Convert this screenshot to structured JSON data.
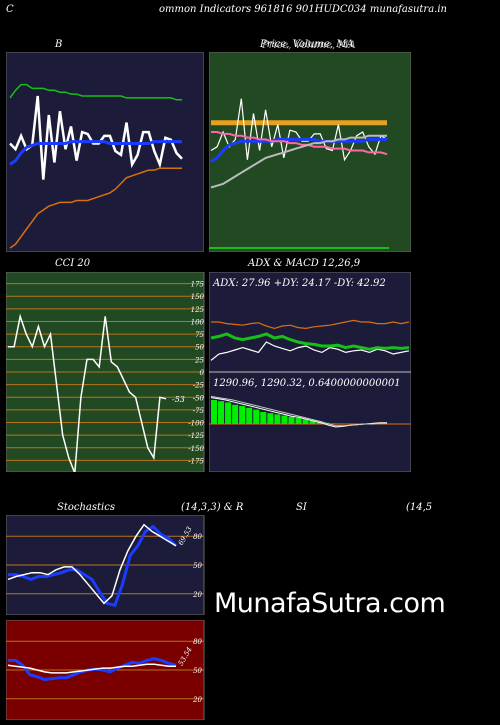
{
  "header": {
    "left": "C",
    "title": "ommon  Indicators 961816  901HUDC034  munafasutra.in"
  },
  "watermark": "MunafaSutra.com",
  "colors": {
    "navy": "#1c1c3a",
    "green_panel": "#224a22",
    "maroon": "#7a0000",
    "grid_orange": "#b8741a",
    "blue_line": "#1a3cff",
    "green_line": "#16c016",
    "orange_line": "#d87010",
    "macd_bar": "#00ee00"
  },
  "chart_data": [
    {
      "id": "bollinger",
      "type": "line",
      "title": "B",
      "series": [
        {
          "color": "#16c016",
          "values": [
            79,
            83,
            86,
            86,
            84,
            84,
            84,
            83,
            83,
            82,
            82,
            81,
            81,
            80,
            80,
            80,
            80,
            80,
            80,
            80,
            80,
            79,
            79,
            79,
            79,
            79,
            79,
            79,
            79,
            79,
            78,
            78
          ]
        },
        {
          "color": "#ffffff",
          "values": [
            55,
            52,
            59,
            52,
            54,
            80,
            36,
            70,
            45,
            72,
            52,
            64,
            46,
            61,
            60,
            55,
            55,
            59,
            59,
            51,
            49,
            66,
            44,
            49,
            61,
            61,
            51,
            44,
            58,
            57,
            50,
            47
          ]
        },
        {
          "color": "#1a3cff",
          "values": [
            44,
            46,
            50,
            53,
            54,
            55,
            55,
            55,
            55,
            55,
            55,
            56,
            56,
            56,
            56,
            56,
            56,
            56,
            55,
            55,
            55,
            55,
            55,
            55,
            55,
            55,
            56,
            56,
            56,
            56,
            56,
            56
          ]
        },
        {
          "color": "#d87010",
          "values": [
            0,
            2,
            6,
            10,
            14,
            18,
            20,
            22,
            23,
            24,
            24,
            24,
            25,
            25,
            25,
            26,
            27,
            28,
            29,
            31,
            34,
            37,
            38,
            39,
            40,
            41,
            41,
            42,
            42,
            42,
            42,
            42
          ]
        }
      ],
      "ylim": [
        0,
        100
      ]
    },
    {
      "id": "price_ma",
      "type": "line",
      "title": "Price,  Volume,  MA",
      "overlap_text": "Price, Volume, MA",
      "series": [
        {
          "color": "#e8a020",
          "values": [
            65,
            65,
            65,
            65,
            65,
            65,
            65,
            65,
            65,
            65,
            65,
            65,
            65,
            65,
            65,
            65,
            65,
            65,
            65,
            65,
            65,
            65,
            65,
            65,
            65,
            65,
            65,
            65,
            65,
            65
          ]
        },
        {
          "color": "#ffffff",
          "values": [
            50,
            52,
            60,
            52,
            56,
            78,
            45,
            70,
            50,
            72,
            52,
            64,
            46,
            61,
            60,
            55,
            55,
            59,
            59,
            51,
            50,
            64,
            45,
            50,
            58,
            60,
            52,
            48,
            58,
            56
          ]
        },
        {
          "color": "#1a3cff",
          "values": [
            44,
            46,
            50,
            53,
            54,
            55,
            55,
            55,
            55,
            55,
            55,
            56,
            56,
            56,
            56,
            56,
            56,
            56,
            55,
            55,
            55,
            55,
            55,
            55,
            55,
            55,
            56,
            56,
            56,
            56
          ]
        },
        {
          "color": "#ff66aa",
          "values": [
            60,
            60,
            59,
            59,
            58,
            58,
            57,
            57,
            56,
            56,
            55,
            55,
            55,
            54,
            54,
            53,
            53,
            52,
            52,
            52,
            51,
            51,
            51,
            50,
            50,
            50,
            49,
            49,
            49,
            48
          ]
        },
        {
          "color": "#bbbbbb",
          "values": [
            30,
            31,
            32,
            34,
            36,
            38,
            40,
            42,
            44,
            46,
            47,
            48,
            49,
            50,
            51,
            52,
            53,
            54,
            54,
            55,
            55,
            56,
            56,
            57,
            57,
            57,
            58,
            58,
            58,
            58
          ]
        }
      ],
      "ylim": [
        0,
        100
      ]
    },
    {
      "id": "cci",
      "type": "line",
      "title": "CCI 20",
      "last_value": "-53",
      "yticks": [
        "175",
        "150",
        "125",
        "100",
        "75",
        "50",
        "25",
        "0",
        "-25",
        "-50",
        "-75",
        "-100",
        "-125",
        "-150",
        "-175"
      ],
      "values": [
        50,
        50,
        110,
        75,
        50,
        90,
        50,
        75,
        -25,
        -125,
        -170,
        -200,
        -50,
        25,
        25,
        10,
        110,
        20,
        10,
        -15,
        -40,
        -50,
        -100,
        -150,
        -170,
        -50,
        -53
      ],
      "ylim": [
        -190,
        190
      ]
    },
    {
      "id": "adx",
      "type": "line",
      "title": "ADX  & MACD 12,26,9",
      "label": "ADX: 27.96  +DY: 24.17 -DY: 42.92",
      "series": [
        {
          "name": "+DY",
          "color": "#ffffff",
          "values": [
            12,
            20,
            22,
            25,
            28,
            25,
            22,
            35,
            30,
            27,
            24,
            28,
            30,
            25,
            22,
            28,
            26,
            22,
            24,
            25,
            22,
            26,
            24,
            20,
            22,
            24
          ]
        },
        {
          "name": "-DY",
          "color": "#d87010",
          "values": [
            60,
            60,
            58,
            57,
            56,
            58,
            59,
            55,
            52,
            55,
            56,
            53,
            52,
            54,
            55,
            56,
            58,
            60,
            62,
            60,
            60,
            58,
            58,
            60,
            58,
            60
          ]
        },
        {
          "name": "ADX",
          "color": "#16c016",
          "values": [
            40,
            42,
            45,
            40,
            38,
            40,
            42,
            45,
            40,
            42,
            38,
            35,
            33,
            32,
            30,
            30,
            31,
            28,
            30,
            28,
            26,
            28,
            27,
            28,
            27,
            28
          ]
        }
      ],
      "ylim": [
        0,
        100
      ]
    },
    {
      "id": "macd",
      "type": "bar",
      "label": "1290.96,  1290.32,  0.6400000000001",
      "bars": [
        40,
        38,
        36,
        32,
        30,
        27,
        24,
        20,
        18,
        16,
        14,
        12,
        10,
        8,
        6,
        4,
        2,
        1,
        0,
        0,
        0,
        0,
        0,
        0,
        0
      ],
      "series": [
        {
          "color": "#ffffff",
          "values": [
            44,
            42,
            40,
            37,
            34,
            31,
            28,
            25,
            22,
            19,
            16,
            13,
            11,
            8,
            5,
            2,
            -2,
            -5,
            -4,
            -2,
            -1,
            0,
            1,
            2,
            2
          ]
        },
        {
          "color": "#cccccc",
          "values": [
            46,
            44,
            42,
            40,
            37,
            34,
            31,
            28,
            25,
            22,
            19,
            16,
            13,
            10,
            7,
            4,
            0,
            -3,
            -3,
            -2,
            -1,
            0,
            0,
            1,
            1
          ]
        }
      ],
      "ylim": [
        -10,
        50
      ]
    },
    {
      "id": "stochastics",
      "type": "line",
      "title": "Stochastics",
      "title_right": "(14,3,3) & R",
      "last_value": "69.53",
      "yticks": [
        "80",
        "50",
        "20"
      ],
      "series": [
        {
          "color": "#1a3cff",
          "values": [
            40,
            40,
            38,
            35,
            38,
            38,
            40,
            42,
            45,
            45,
            40,
            35,
            22,
            10,
            8,
            30,
            60,
            70,
            85,
            90,
            82,
            78,
            70
          ]
        },
        {
          "color": "#ffffff",
          "values": [
            35,
            38,
            40,
            42,
            42,
            40,
            45,
            48,
            48,
            40,
            30,
            20,
            10,
            18,
            45,
            65,
            80,
            92,
            85,
            80,
            75,
            70
          ]
        }
      ],
      "ylim": [
        0,
        100
      ]
    },
    {
      "id": "rsi",
      "type": "line",
      "title": "SI",
      "title_right": "(14,5",
      "last_value": "53.54",
      "yticks": [
        "80",
        "50",
        "20"
      ],
      "series": [
        {
          "color": "#1a3cff",
          "values": [
            60,
            60,
            55,
            45,
            43,
            40,
            41,
            42,
            42,
            45,
            48,
            50,
            51,
            50,
            48,
            52,
            55,
            58,
            57,
            60,
            62,
            60,
            57,
            55
          ]
        },
        {
          "color": "#ffffff",
          "values": [
            55,
            54,
            53,
            52,
            50,
            48,
            47,
            47,
            47,
            48,
            49,
            50,
            51,
            52,
            52,
            53,
            54,
            54,
            55,
            56,
            56,
            55,
            54,
            54
          ]
        }
      ],
      "ylim": [
        0,
        100
      ]
    }
  ]
}
